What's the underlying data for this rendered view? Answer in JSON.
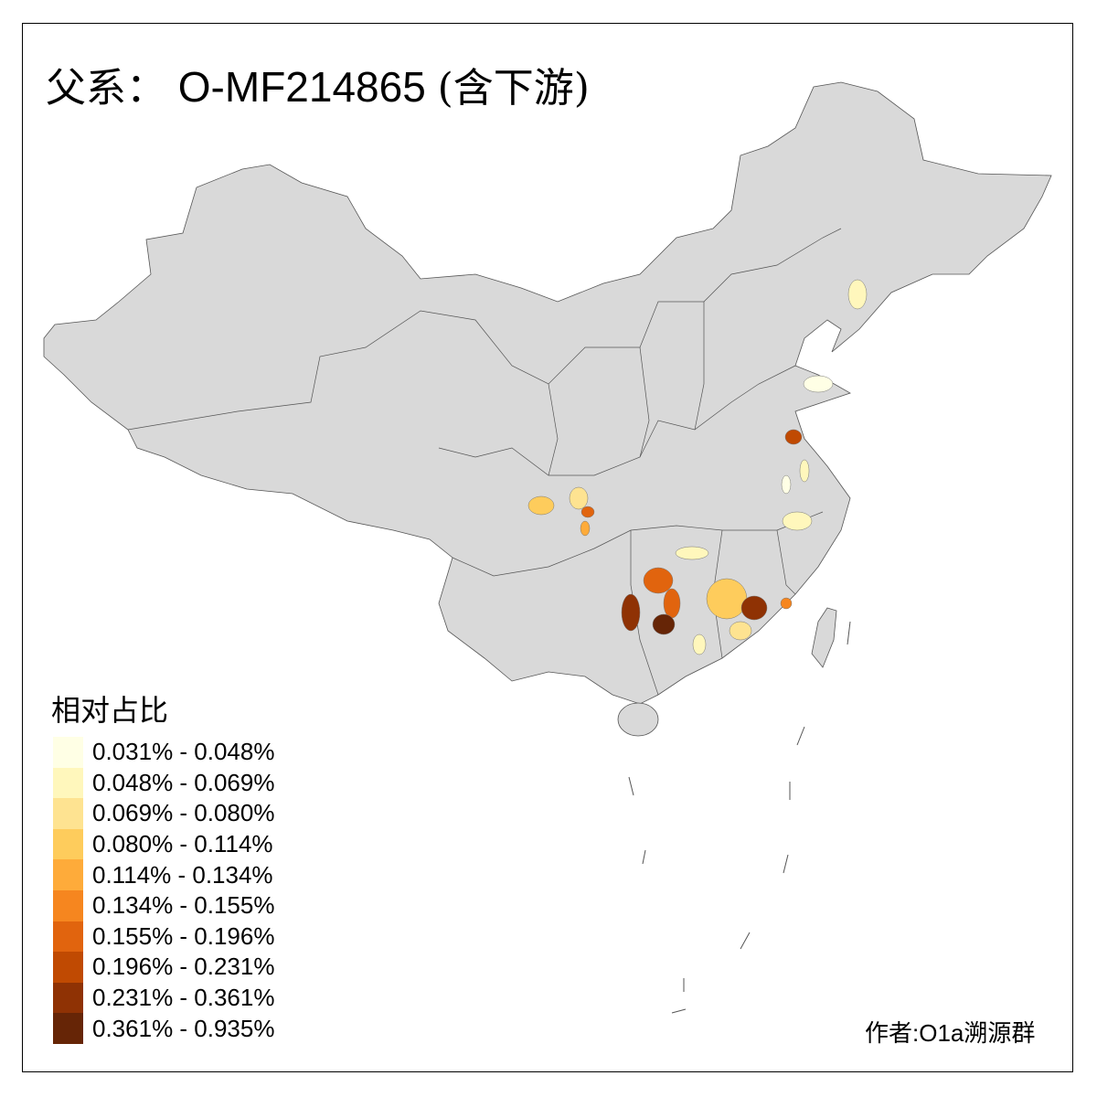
{
  "title": {
    "prefix": "父系：",
    "haplogroup": "O-MF214865",
    "suffix": "(含下游)"
  },
  "legend": {
    "title": "相对占比",
    "classes": [
      {
        "label": "0.031% - 0.048%",
        "color": "#FFFFE5"
      },
      {
        "label": "0.048% - 0.069%",
        "color": "#FFF7BC"
      },
      {
        "label": "0.069% - 0.080%",
        "color": "#FEE391"
      },
      {
        "label": "0.080% - 0.114%",
        "color": "#FECC5C"
      },
      {
        "label": "0.114% - 0.134%",
        "color": "#FEAB3A"
      },
      {
        "label": "0.134% - 0.155%",
        "color": "#F6861F"
      },
      {
        "label": "0.155% - 0.196%",
        "color": "#E1640E"
      },
      {
        "label": "0.196% - 0.231%",
        "color": "#C04A02"
      },
      {
        "label": "0.231% - 0.361%",
        "color": "#8F3204"
      },
      {
        "label": "0.361% - 0.935%",
        "color": "#662506"
      }
    ]
  },
  "map": {
    "base_color": "#D9D9D9",
    "border_color": "#555555"
  },
  "credit": "作者:O1a溯源群"
}
